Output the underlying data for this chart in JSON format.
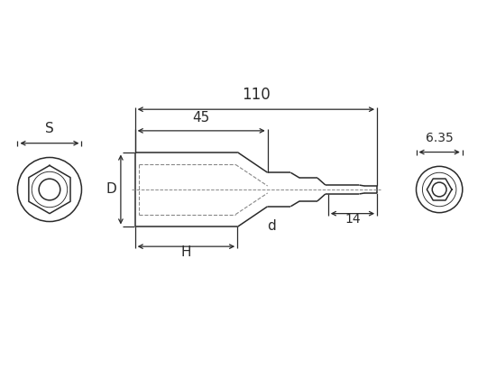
{
  "bg_color": "#ffffff",
  "line_color": "#2a2a2a",
  "dim_color": "#2a2a2a",
  "fig_width": 5.5,
  "fig_height": 4.2,
  "dpi": 100,
  "labels": {
    "S": "S",
    "D": "D",
    "H": "H",
    "d": "d",
    "110": "110",
    "45": "45",
    "14": "14",
    "6.35": "6.35"
  },
  "lw_main": 1.1,
  "lw_dim": 0.9,
  "lw_dash": 0.8,
  "fs_main": 11,
  "fs_small": 10
}
